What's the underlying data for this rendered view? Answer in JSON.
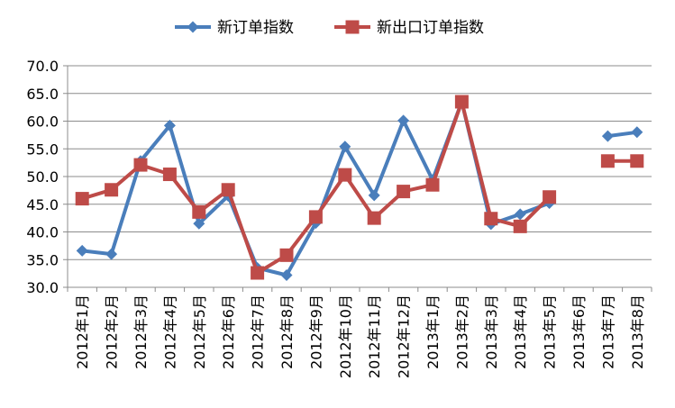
{
  "chart_data": {
    "type": "line",
    "title": "",
    "xlabel": "",
    "ylabel": "",
    "ylim": [
      30,
      70
    ],
    "yticks": [
      "30.0",
      "35.0",
      "40.0",
      "45.0",
      "50.0",
      "55.0",
      "60.0",
      "65.0",
      "70.0"
    ],
    "grid": true,
    "legend_position": "top",
    "categories": [
      "2012年1月",
      "2012年2月",
      "2012年3月",
      "2012年4月",
      "2012年5月",
      "2012年6月",
      "2012年7月",
      "2012年8月",
      "2012年9月",
      "2012年10月",
      "2012年11月",
      "2012年12月",
      "2013年1月",
      "2013年2月",
      "2013年3月",
      "2013年4月",
      "2013年5月",
      "2013年6月",
      "2013年7月",
      "2013年8月"
    ],
    "series": [
      {
        "name": "新订单指数",
        "color": "#4a7ebb",
        "marker": "diamond",
        "values": [
          36.6,
          36.0,
          52.8,
          59.2,
          41.5,
          46.5,
          33.5,
          32.2,
          41.6,
          55.4,
          46.6,
          60.1,
          49.4,
          63.5,
          41.4,
          43.2,
          45.2,
          null,
          57.3,
          58.0
        ]
      },
      {
        "name": "新出口订单指数",
        "color": "#be4b48",
        "marker": "square",
        "values": [
          46.0,
          47.6,
          52.1,
          50.4,
          43.6,
          47.6,
          32.6,
          35.8,
          42.7,
          50.3,
          42.5,
          47.3,
          48.5,
          63.5,
          42.4,
          41.0,
          46.3,
          null,
          52.8,
          52.8
        ]
      }
    ]
  }
}
